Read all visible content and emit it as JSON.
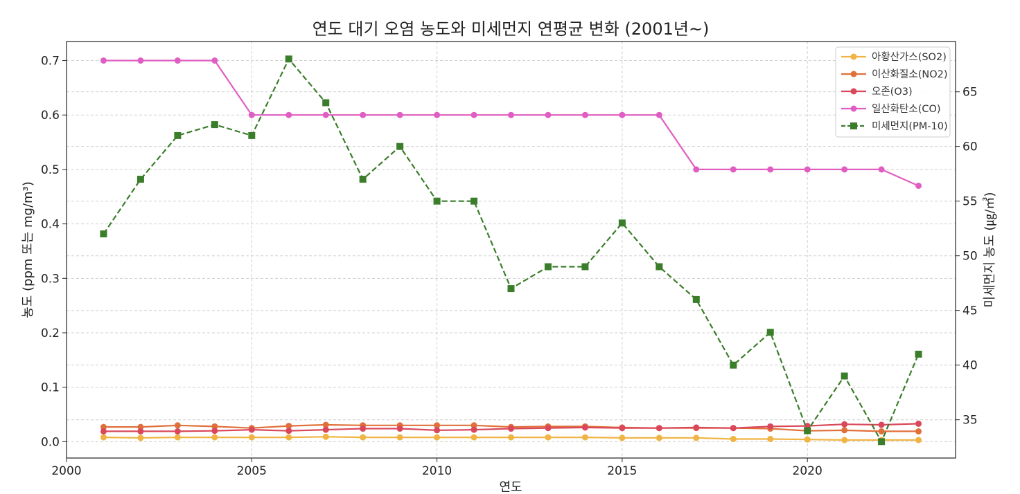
{
  "chart_data": {
    "type": "line",
    "title": "연도 대기 오염 농도와 미세먼지 연평균 변화 (2001년~)",
    "xlabel": "연도",
    "ylabel_left": "농도 (ppm 또는 mg/m³)",
    "ylabel_right": "미세먼지 농도 (㎍/㎥)",
    "xlim": [
      2000,
      2024
    ],
    "ylim_left": [
      -0.03,
      0.735
    ],
    "ylim_right": [
      31.5,
      69.6
    ],
    "x_ticks": [
      2000,
      2005,
      2010,
      2015,
      2020
    ],
    "y_left_ticks": [
      "0.0",
      "0.1",
      "0.2",
      "0.3",
      "0.4",
      "0.5",
      "0.6",
      "0.7"
    ],
    "y_right_ticks": [
      "35",
      "40",
      "45",
      "50",
      "55",
      "60",
      "65"
    ],
    "grid": true,
    "legend_position": "top-right",
    "x": [
      2001,
      2002,
      2003,
      2004,
      2005,
      2006,
      2007,
      2008,
      2009,
      2010,
      2011,
      2012,
      2013,
      2014,
      2015,
      2016,
      2017,
      2018,
      2019,
      2020,
      2021,
      2022,
      2023
    ],
    "series": [
      {
        "name": "아황산가스(SO2)",
        "axis": "left",
        "color": "#f0b445",
        "marker": "circle",
        "dash": "solid",
        "values": [
          0.008,
          0.007,
          0.008,
          0.008,
          0.008,
          0.008,
          0.009,
          0.008,
          0.008,
          0.008,
          0.008,
          0.008,
          0.008,
          0.008,
          0.007,
          0.007,
          0.007,
          0.005,
          0.005,
          0.004,
          0.003,
          0.003,
          0.003
        ]
      },
      {
        "name": "이산화질소(NO2)",
        "axis": "left",
        "color": "#e0703b",
        "marker": "circle",
        "dash": "solid",
        "values": [
          0.027,
          0.027,
          0.03,
          0.028,
          0.025,
          0.029,
          0.031,
          0.03,
          0.03,
          0.03,
          0.03,
          0.027,
          0.028,
          0.028,
          0.026,
          0.025,
          0.025,
          0.025,
          0.024,
          0.02,
          0.021,
          0.019,
          0.019
        ]
      },
      {
        "name": "오존(O3)",
        "axis": "left",
        "color": "#d9485a",
        "marker": "circle",
        "dash": "solid",
        "values": [
          0.019,
          0.019,
          0.019,
          0.02,
          0.022,
          0.02,
          0.022,
          0.024,
          0.024,
          0.021,
          0.022,
          0.024,
          0.025,
          0.026,
          0.025,
          0.025,
          0.026,
          0.025,
          0.028,
          0.029,
          0.032,
          0.031,
          0.033
        ]
      },
      {
        "name": "일산화탄소(CO)",
        "axis": "left",
        "color": "#e05ec2",
        "marker": "circle",
        "dash": "solid",
        "values": [
          0.7,
          0.7,
          0.7,
          0.7,
          0.6,
          0.6,
          0.6,
          0.6,
          0.6,
          0.6,
          0.6,
          0.6,
          0.6,
          0.6,
          0.6,
          0.6,
          0.5,
          0.5,
          0.5,
          0.5,
          0.5,
          0.5,
          0.47
        ]
      },
      {
        "name": "미세먼지(PM-10)",
        "axis": "right",
        "color": "#3a7d2a",
        "marker": "square",
        "dash": "dashed",
        "values": [
          52,
          57,
          61,
          62,
          61,
          68,
          64,
          57,
          60,
          55,
          55,
          47,
          49,
          49,
          53,
          49,
          46,
          40,
          43,
          34,
          39,
          33,
          41
        ]
      }
    ]
  }
}
